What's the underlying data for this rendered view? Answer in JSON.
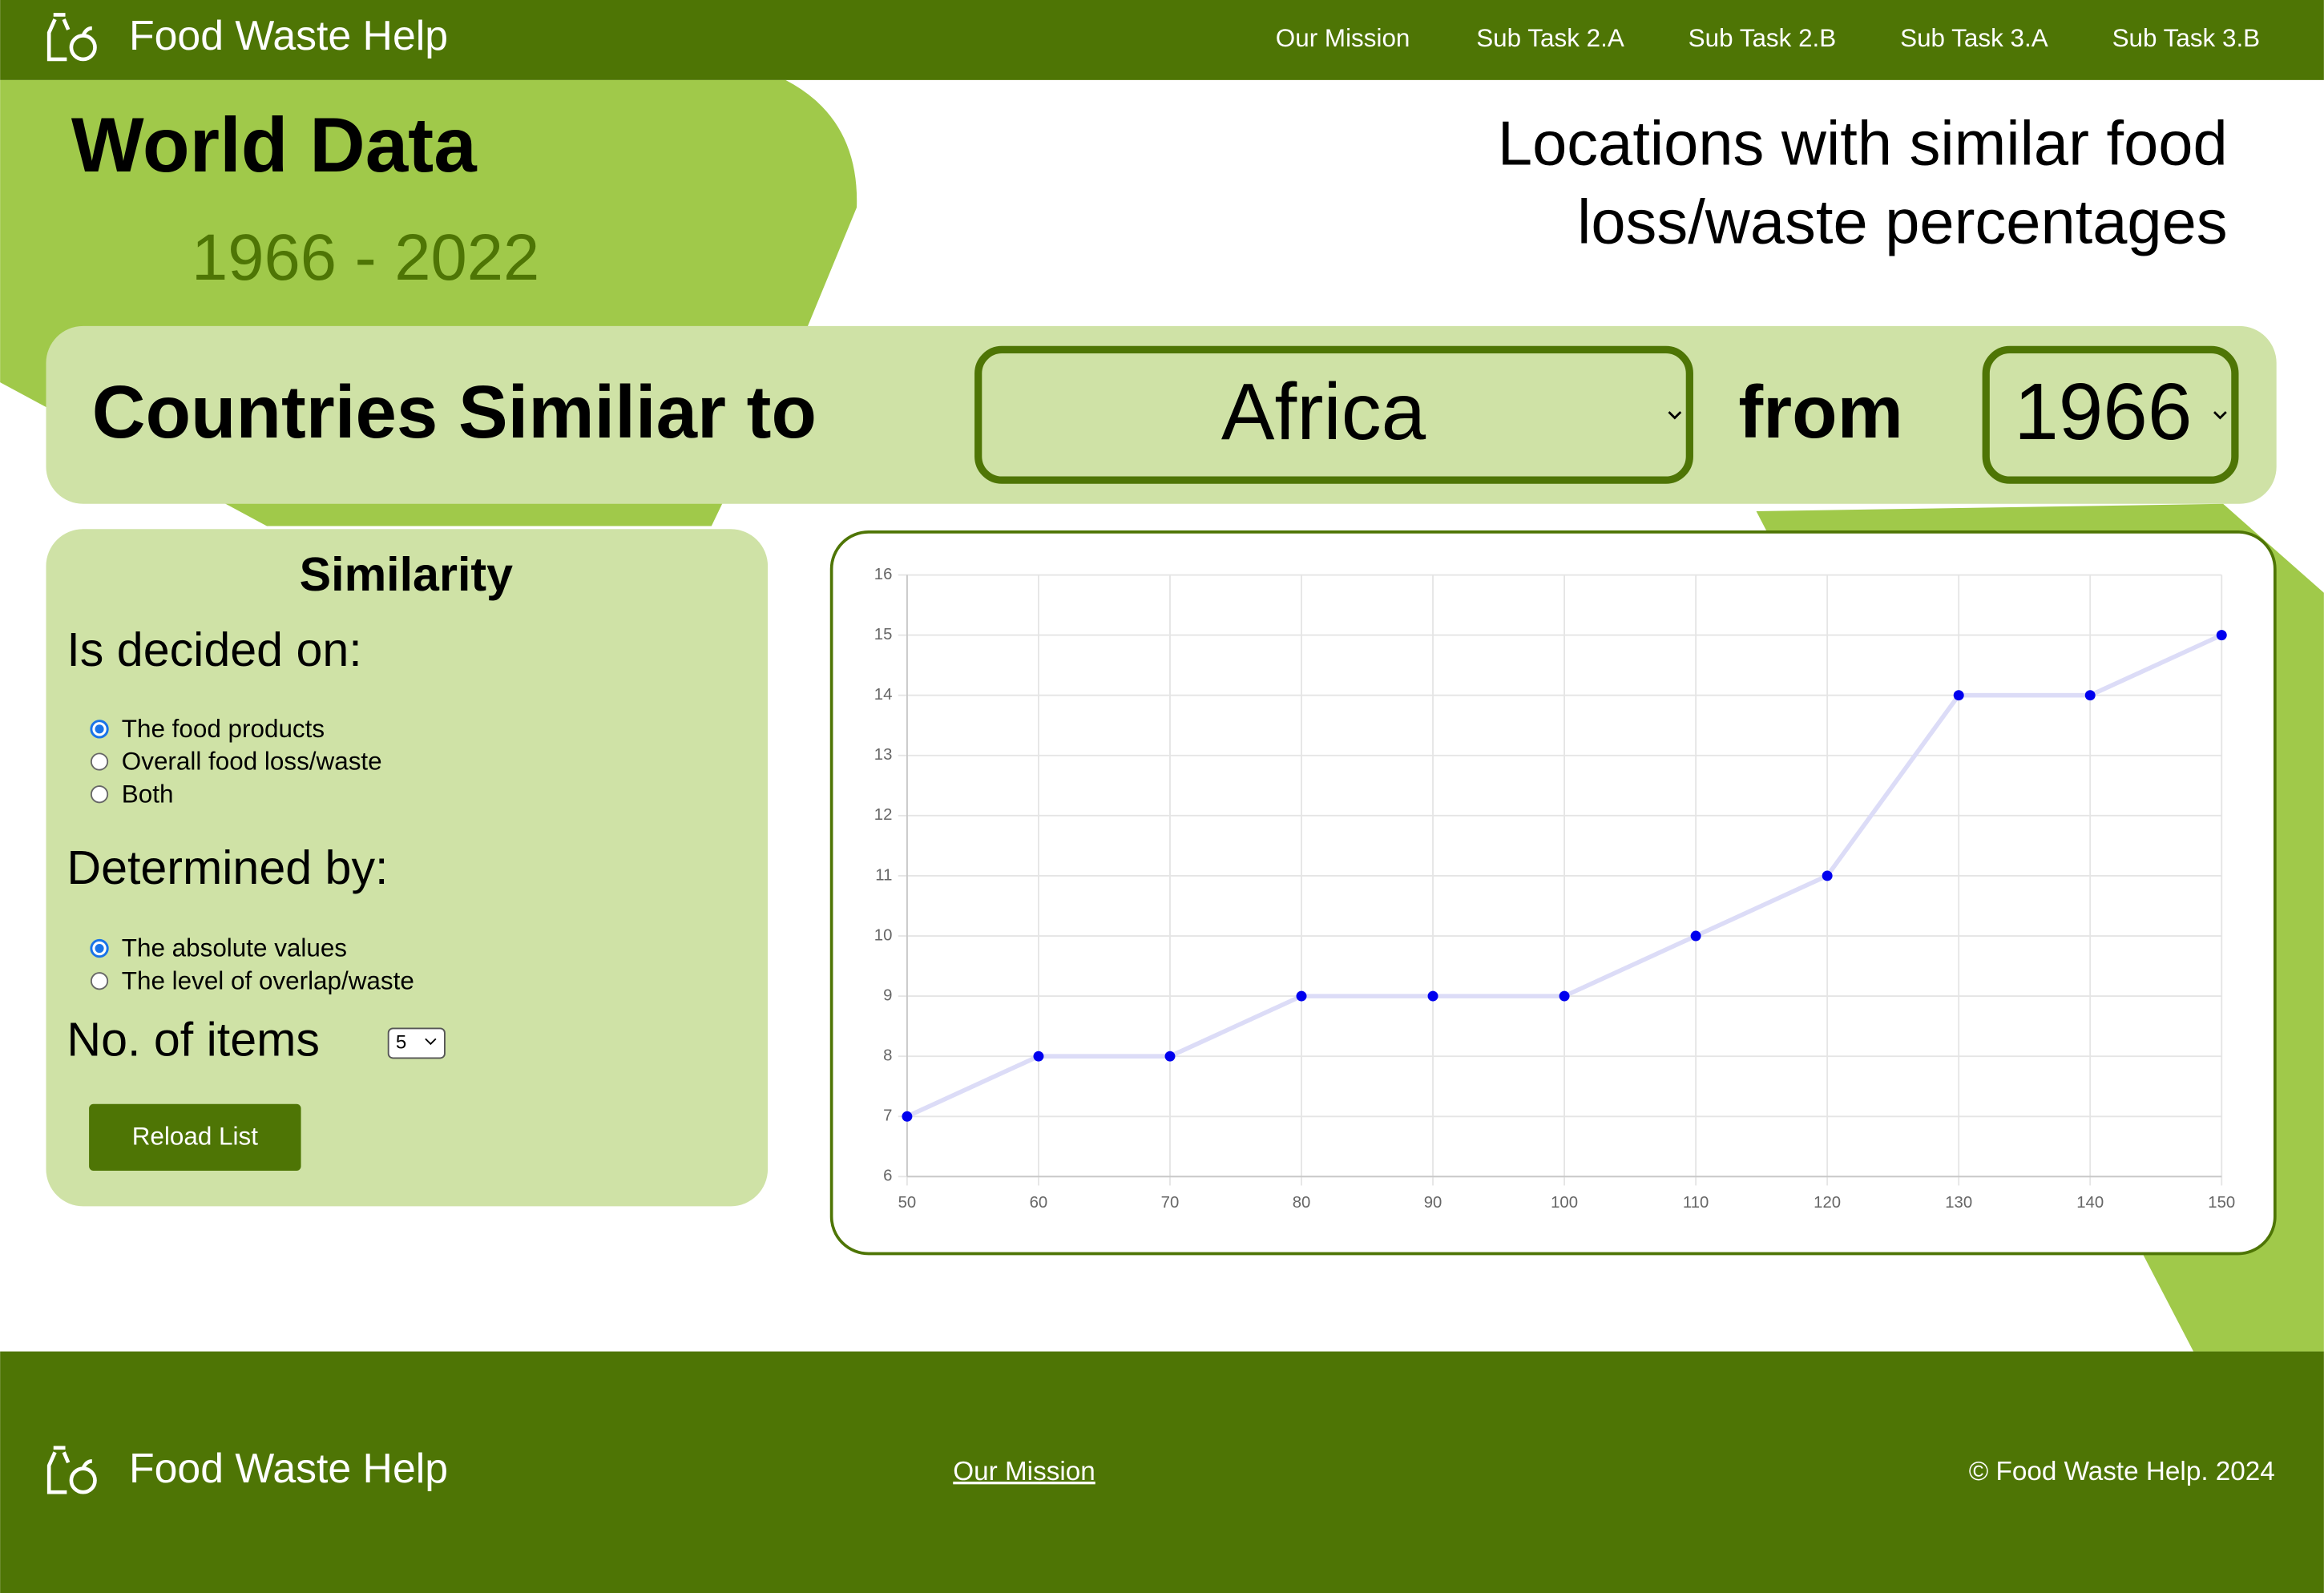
{
  "nav": {
    "brand": "Food Waste Help",
    "links": [
      "Our Mission",
      "Sub Task 2.A",
      "Sub Task 2.B",
      "Sub Task 3.A",
      "Sub Task 3.B"
    ]
  },
  "header": {
    "title": "World Data",
    "years": "1966 - 2022",
    "subtitle_lines": [
      "Locations with similar food",
      "loss/waste percentages"
    ]
  },
  "query": {
    "prefix": "Countries Similiar to",
    "location": "Africa",
    "connector": "from",
    "year": "1966"
  },
  "similarity": {
    "title": "Similarity",
    "decided_label": "Is decided on:",
    "decided_options": [
      "The food products",
      "Overall food loss/waste",
      "Both"
    ],
    "decided_selected": 0,
    "determined_label": "Determined by:",
    "determined_options": [
      "The absolute values",
      "The level of overlap/waste"
    ],
    "determined_selected": 0,
    "items_label": "No. of items",
    "items_value": "5",
    "button": "Reload List"
  },
  "chart_data": {
    "type": "line",
    "x": [
      50,
      60,
      70,
      80,
      90,
      100,
      110,
      120,
      130,
      140,
      150
    ],
    "values": [
      7,
      8,
      8,
      9,
      9,
      9,
      10,
      11,
      14,
      14,
      15
    ],
    "color": "#0000ee",
    "line_color": "#dcdcf7",
    "xlim": [
      50,
      150
    ],
    "ylim": [
      6,
      16
    ],
    "xticks": [
      50,
      60,
      70,
      80,
      90,
      100,
      110,
      120,
      130,
      140,
      150
    ],
    "yticks": [
      6,
      7,
      8,
      9,
      10,
      11,
      12,
      13,
      14,
      15,
      16
    ],
    "grid": true
  },
  "footer": {
    "brand": "Food Waste Help",
    "link": "Our Mission",
    "copyright": "© Food Waste Help. 2024"
  }
}
